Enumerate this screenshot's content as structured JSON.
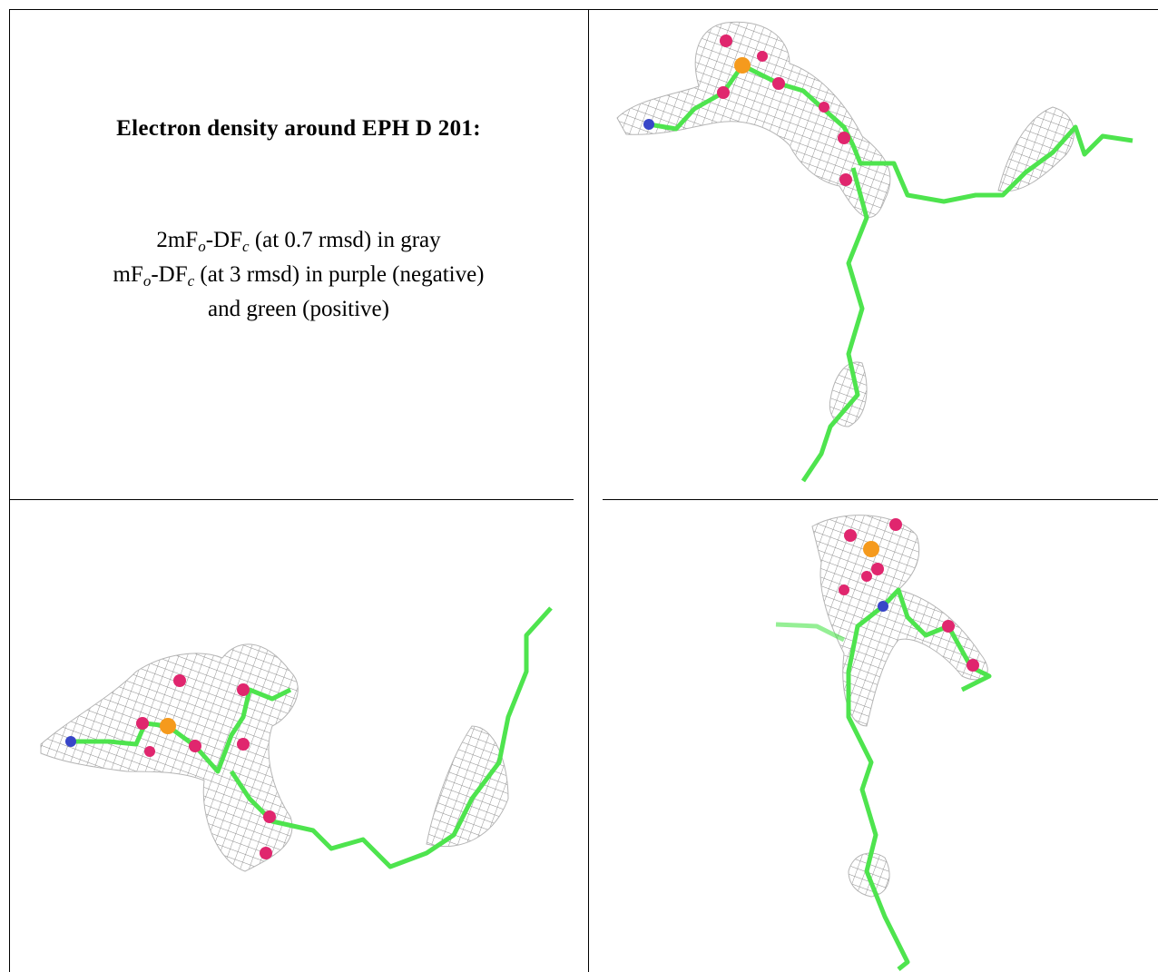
{
  "caption": {
    "title": "Electron density around EPH D 201:",
    "lines": [
      [
        {
          "text": "2mF",
          "sub": "o"
        },
        {
          "text": "-DF",
          "sub": "c"
        },
        {
          "text": " (at 0.7 rmsd) in gray"
        }
      ],
      [
        {
          "text": "mF",
          "sub": "o"
        },
        {
          "text": "-DF",
          "sub": "c"
        },
        {
          "text": " (at 3 rmsd) in purple (negative)"
        }
      ],
      [
        {
          "text": "and green (positive)"
        }
      ]
    ]
  }
}
